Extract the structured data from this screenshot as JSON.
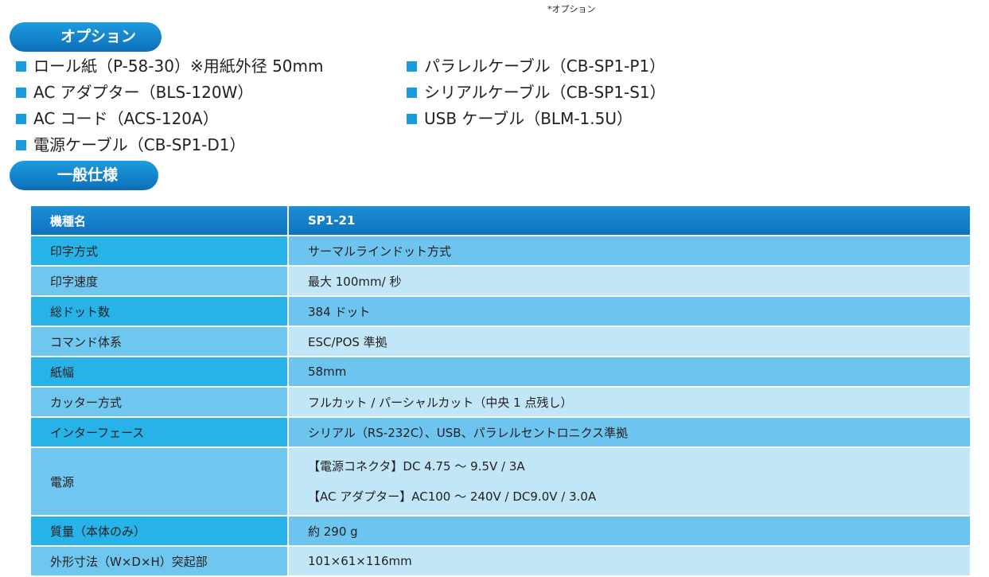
{
  "note": "*オプション",
  "options_header": "オプション",
  "options_left": [
    "ロール紙（P-58-30）※用紙外径 50mm",
    "AC アダプター（BLS-120W）",
    "AC コード（ACS-120A）",
    "電源ケーブル（CB-SP1-D1）"
  ],
  "options_right": [
    "パラレルケーブル（CB-SP1-P1）",
    "シリアルケーブル（CB-SP1-S1）",
    "USB ケーブル（BLM-1.5U）"
  ],
  "spec_header": "一般仕様",
  "table": {
    "head": [
      "機種名",
      "SP1-21"
    ],
    "rows": [
      {
        "label": "印字方式",
        "value": "サーマルラインドット方式"
      },
      {
        "label": "印字速度",
        "value": "最大 100mm/ 秒"
      },
      {
        "label": "総ドット数",
        "value": "384 ドット"
      },
      {
        "label": "コマンド体系",
        "value": "ESC/POS 準拠"
      },
      {
        "label": "紙幅",
        "value": "58mm"
      },
      {
        "label": "カッター方式",
        "value": "フルカット / パーシャルカット（中央 1 点残し）"
      },
      {
        "label": "インターフェース",
        "value": "シリアル（RS-232C）、USB、パラレルセントロニクス準拠"
      },
      {
        "label": "電源",
        "value": "【電源コネクタ】DC 4.75 〜 9.5V / 3A",
        "value2": "【AC アダプター】AC100 〜 240V / DC9.0V / 3.0A"
      },
      {
        "label": "質量（本体のみ）",
        "value": "約 290 g"
      },
      {
        "label": "外形寸法（W×D×H）突起部",
        "value": "101×61×116mm"
      }
    ]
  },
  "colors": {
    "accent": "#0c6fb8",
    "bullet": "#1a9be0",
    "label_dark": "#27b3e8",
    "value_dark": "#6dc4ee",
    "label_light": "#6fc6ee",
    "value_light": "#c0e6f8"
  }
}
